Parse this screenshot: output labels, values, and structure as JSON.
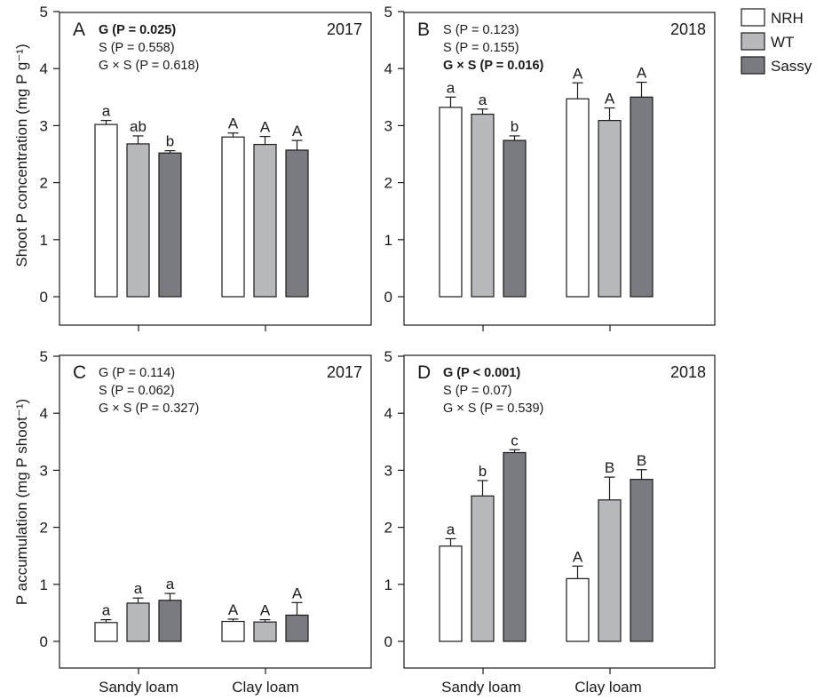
{
  "legend": [
    {
      "name": "NRH",
      "color": "#ffffff"
    },
    {
      "name": "WT",
      "color": "#b8b9bd"
    },
    {
      "name": "Sassy",
      "color": "#7a7b80"
    }
  ],
  "y_axis_labels": {
    "top": "Shoot P concentration (mg P g⁻¹)",
    "bottom": "P accumulation (mg P shoot⁻¹)"
  },
  "x_tick_labels": [
    "Sandy loam",
    "Clay loam"
  ],
  "chart_data": [
    {
      "type": "bar",
      "panel": "A",
      "year": "2017",
      "stats": [
        {
          "text": "G (P = 0.025)",
          "bold": true
        },
        {
          "text": "S (P = 0.558)",
          "bold": false
        },
        {
          "text": "G × S (P = 0.618)",
          "bold": false
        }
      ],
      "ylim": [
        0,
        5
      ],
      "yticks": [
        0,
        1,
        2,
        3,
        4,
        5
      ],
      "categories": [
        "Sandy loam",
        "Clay loam"
      ],
      "series": [
        {
          "name": "NRH",
          "values": [
            3.02,
            2.8
          ],
          "errors": [
            0.07,
            0.07
          ],
          "letters": [
            "a",
            "A"
          ]
        },
        {
          "name": "WT",
          "values": [
            2.68,
            2.67
          ],
          "errors": [
            0.14,
            0.14
          ],
          "letters": [
            "ab",
            "A"
          ]
        },
        {
          "name": "Sassy",
          "values": [
            2.52,
            2.57
          ],
          "errors": [
            0.04,
            0.17
          ],
          "letters": [
            "b",
            "A"
          ]
        }
      ]
    },
    {
      "type": "bar",
      "panel": "B",
      "year": "2018",
      "stats": [
        {
          "text": "S (P = 0.123)",
          "bold": false
        },
        {
          "text": "S (P = 0.155)",
          "bold": false
        },
        {
          "text": "G × S (P = 0.016)",
          "bold": true
        }
      ],
      "ylim": [
        0,
        5
      ],
      "yticks": [
        0,
        1,
        2,
        3,
        4,
        5
      ],
      "categories": [
        "Sandy loam",
        "Clay loam"
      ],
      "series": [
        {
          "name": "NRH",
          "values": [
            3.32,
            3.47
          ],
          "errors": [
            0.18,
            0.28
          ],
          "letters": [
            "a",
            "A"
          ]
        },
        {
          "name": "WT",
          "values": [
            3.2,
            3.09
          ],
          "errors": [
            0.09,
            0.22
          ],
          "letters": [
            "a",
            "A"
          ]
        },
        {
          "name": "Sassy",
          "values": [
            2.74,
            3.5
          ],
          "errors": [
            0.08,
            0.26
          ],
          "letters": [
            "b",
            "A"
          ]
        }
      ]
    },
    {
      "type": "bar",
      "panel": "C",
      "year": "2017",
      "stats": [
        {
          "text": "G (P = 0.114)",
          "bold": false
        },
        {
          "text": "S (P = 0.062)",
          "bold": false
        },
        {
          "text": "G × S (P = 0.327)",
          "bold": false
        }
      ],
      "ylim": [
        0,
        5
      ],
      "yticks": [
        0,
        1,
        2,
        3,
        4,
        5
      ],
      "categories": [
        "Sandy loam",
        "Clay loam"
      ],
      "series": [
        {
          "name": "NRH",
          "values": [
            0.33,
            0.35
          ],
          "errors": [
            0.05,
            0.04
          ],
          "letters": [
            "a",
            "A"
          ]
        },
        {
          "name": "WT",
          "values": [
            0.67,
            0.34
          ],
          "errors": [
            0.09,
            0.04
          ],
          "letters": [
            "a",
            "A"
          ]
        },
        {
          "name": "Sassy",
          "values": [
            0.72,
            0.46
          ],
          "errors": [
            0.12,
            0.22
          ],
          "letters": [
            "a",
            "A"
          ]
        }
      ]
    },
    {
      "type": "bar",
      "panel": "D",
      "year": "2018",
      "stats": [
        {
          "text": "G (P < 0.001)",
          "bold": true
        },
        {
          "text": "S (P = 0.07)",
          "bold": false
        },
        {
          "text": "G × S (P = 0.539)",
          "bold": false
        }
      ],
      "ylim": [
        0,
        5
      ],
      "yticks": [
        0,
        1,
        2,
        3,
        4,
        5
      ],
      "categories": [
        "Sandy loam",
        "Clay loam"
      ],
      "series": [
        {
          "name": "NRH",
          "values": [
            1.67,
            1.1
          ],
          "errors": [
            0.13,
            0.22
          ],
          "letters": [
            "a",
            "A"
          ]
        },
        {
          "name": "WT",
          "values": [
            2.55,
            2.48
          ],
          "errors": [
            0.27,
            0.4
          ],
          "letters": [
            "b",
            "B"
          ]
        },
        {
          "name": "Sassy",
          "values": [
            3.31,
            2.84
          ],
          "errors": [
            0.05,
            0.17
          ],
          "letters": [
            "c",
            "B"
          ]
        }
      ]
    }
  ]
}
